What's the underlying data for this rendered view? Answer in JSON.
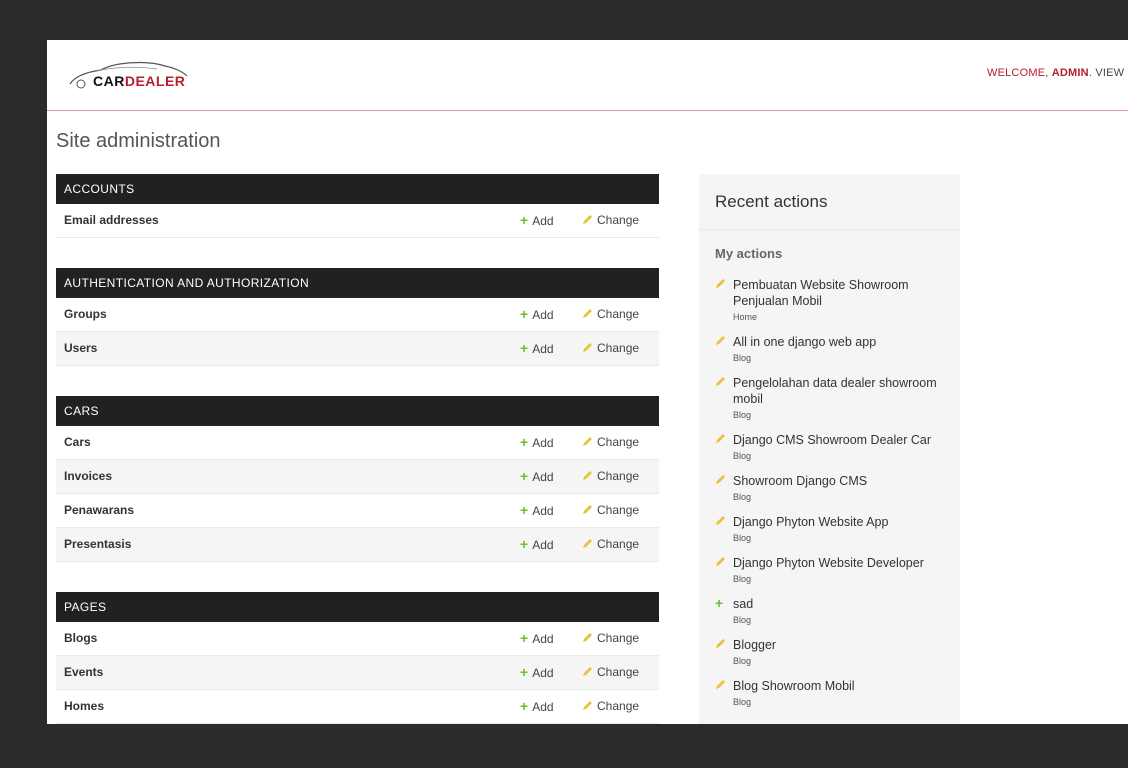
{
  "header": {
    "logo": {
      "part1": "CAR",
      "part2": "DEALER"
    },
    "welcome": "WELCOME,",
    "username": "ADMIN",
    "view_site": ". VIEW S"
  },
  "page_title": "Site administration",
  "modules": [
    {
      "caption": "ACCOUNTS",
      "models": [
        {
          "name": "Email addresses",
          "add": "Add",
          "change": "Change"
        }
      ]
    },
    {
      "caption": "AUTHENTICATION AND AUTHORIZATION",
      "models": [
        {
          "name": "Groups",
          "add": "Add",
          "change": "Change"
        },
        {
          "name": "Users",
          "add": "Add",
          "change": "Change"
        }
      ]
    },
    {
      "caption": "CARS",
      "models": [
        {
          "name": "Cars",
          "add": "Add",
          "change": "Change"
        },
        {
          "name": "Invoices",
          "add": "Add",
          "change": "Change"
        },
        {
          "name": "Penawarans",
          "add": "Add",
          "change": "Change"
        },
        {
          "name": "Presentasis",
          "add": "Add",
          "change": "Change"
        }
      ]
    },
    {
      "caption": "PAGES",
      "models": [
        {
          "name": "Blogs",
          "add": "Add",
          "change": "Change"
        },
        {
          "name": "Events",
          "add": "Add",
          "change": "Change"
        },
        {
          "name": "Homes",
          "add": "Add",
          "change": "Change"
        }
      ]
    }
  ],
  "recent_actions": {
    "title": "Recent actions",
    "subtitle": "My actions",
    "items": [
      {
        "kind": "change",
        "title": "Pembuatan Website Showroom Penjualan Mobil",
        "type": "Home"
      },
      {
        "kind": "change",
        "title": "All in one django web app",
        "type": "Blog"
      },
      {
        "kind": "change",
        "title": "Pengelolahan data dealer showroom mobil",
        "type": "Blog"
      },
      {
        "kind": "change",
        "title": "Django CMS Showroom Dealer Car",
        "type": "Blog"
      },
      {
        "kind": "change",
        "title": "Showroom Django CMS",
        "type": "Blog"
      },
      {
        "kind": "change",
        "title": "Django Phyton Website App",
        "type": "Blog"
      },
      {
        "kind": "change",
        "title": "Django Phyton Website Developer",
        "type": "Blog"
      },
      {
        "kind": "add",
        "title": "sad",
        "type": "Blog"
      },
      {
        "kind": "change",
        "title": "Blogger",
        "type": "Blog"
      },
      {
        "kind": "change",
        "title": "Blog Showroom Mobil",
        "type": "Blog"
      }
    ]
  },
  "colors": {
    "accent": "#b4202d",
    "module_header": "#212121",
    "add_green": "#70bf2b",
    "pencil_yellow": "#e8c23a"
  }
}
